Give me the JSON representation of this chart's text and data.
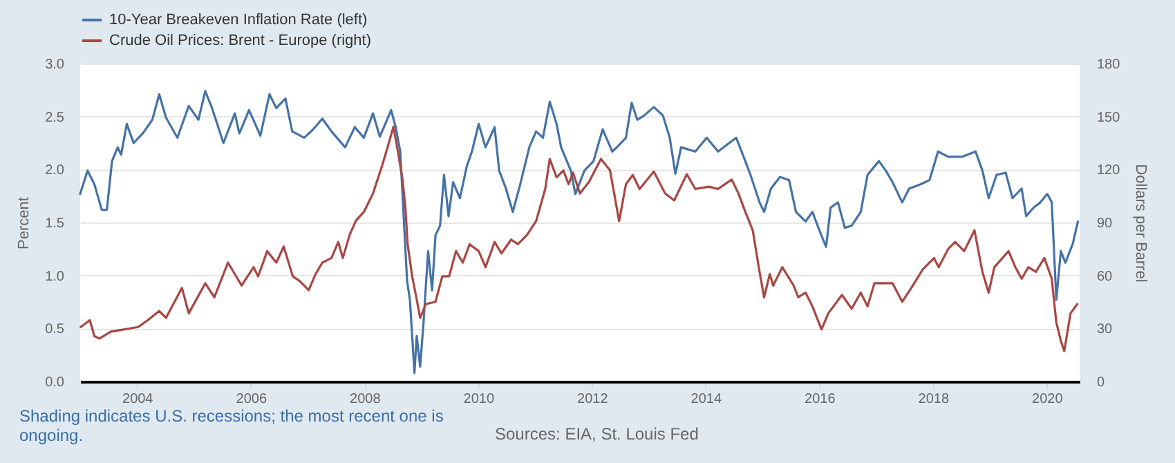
{
  "chart_data": {
    "type": "line",
    "ylabel": "Percent",
    "y2label": "Dollars per Barrel",
    "annotations": [
      "Shading indicates U.S. recessions; the most recent one is ongoing.",
      "Sources: EIA, St. Louis Fed"
    ],
    "xlim": [
      2003.0,
      2020.58
    ],
    "xticks": [
      2004,
      2006,
      2008,
      2010,
      2012,
      2014,
      2016,
      2018,
      2020
    ],
    "ylim": [
      0,
      3
    ],
    "yticks": [
      {
        "value": 0,
        "label": "0.0"
      },
      0.5,
      {
        "value": 1,
        "label": "1.0"
      },
      1.5,
      {
        "value": 2,
        "label": "2.0"
      },
      2.5,
      {
        "value": 3,
        "label": "3.0"
      }
    ],
    "y2lim": [
      0,
      180
    ],
    "y2ticks": [
      0,
      30,
      60,
      90,
      120,
      150,
      180
    ],
    "grid": "y",
    "legend": "top left",
    "series": [
      {
        "name": "10-Year Breakeven Inflation Rate (left)",
        "color": "#4572a7",
        "x": [
          2003.0,
          2003.13,
          2003.25,
          2003.38,
          2003.47,
          2003.56,
          2003.66,
          2003.72,
          2003.82,
          2003.94,
          2004.1,
          2004.27,
          2004.39,
          2004.51,
          2004.71,
          2004.91,
          2005.08,
          2005.2,
          2005.32,
          2005.52,
          2005.72,
          2005.8,
          2005.97,
          2006.17,
          2006.33,
          2006.45,
          2006.61,
          2006.73,
          2006.94,
          2007.1,
          2007.26,
          2007.42,
          2007.66,
          2007.83,
          2007.99,
          2008.15,
          2008.27,
          2008.47,
          2008.55,
          2008.63,
          2008.75,
          2008.8,
          2008.88,
          2008.92,
          2008.98,
          2009.04,
          2009.12,
          2009.19,
          2009.25,
          2009.33,
          2009.4,
          2009.48,
          2009.56,
          2009.68,
          2009.8,
          2009.89,
          2010.01,
          2010.13,
          2010.29,
          2010.37,
          2010.49,
          2010.61,
          2010.74,
          2010.9,
          2011.02,
          2011.14,
          2011.26,
          2011.38,
          2011.46,
          2011.63,
          2011.71,
          2011.87,
          2012.03,
          2012.19,
          2012.36,
          2012.44,
          2012.6,
          2012.7,
          2012.8,
          2012.92,
          2013.09,
          2013.25,
          2013.37,
          2013.47,
          2013.57,
          2013.82,
          2014.02,
          2014.22,
          2014.54,
          2014.67,
          2014.79,
          2014.95,
          2015.03,
          2015.15,
          2015.31,
          2015.47,
          2015.59,
          2015.76,
          2015.88,
          2016.0,
          2016.12,
          2016.2,
          2016.33,
          2016.45,
          2016.57,
          2016.73,
          2016.85,
          2017.05,
          2017.17,
          2017.29,
          2017.46,
          2017.58,
          2017.78,
          2017.94,
          2018.09,
          2018.27,
          2018.51,
          2018.75,
          2018.87,
          2018.98,
          2019.12,
          2019.28,
          2019.4,
          2019.56,
          2019.64,
          2019.77,
          2019.89,
          2020.01,
          2020.09,
          2020.17,
          2020.25,
          2020.33,
          2020.46,
          2020.55
        ],
        "values": [
          1.77,
          1.99,
          1.86,
          1.62,
          1.62,
          2.08,
          2.21,
          2.14,
          2.43,
          2.25,
          2.34,
          2.47,
          2.71,
          2.49,
          2.3,
          2.6,
          2.47,
          2.74,
          2.58,
          2.25,
          2.53,
          2.34,
          2.56,
          2.32,
          2.71,
          2.58,
          2.67,
          2.36,
          2.3,
          2.38,
          2.48,
          2.36,
          2.21,
          2.4,
          2.3,
          2.53,
          2.31,
          2.56,
          2.4,
          2.17,
          0.95,
          0.77,
          0.08,
          0.43,
          0.14,
          0.56,
          1.23,
          0.86,
          1.38,
          1.47,
          1.95,
          1.56,
          1.88,
          1.73,
          2.03,
          2.17,
          2.43,
          2.21,
          2.4,
          1.99,
          1.82,
          1.6,
          1.86,
          2.21,
          2.36,
          2.3,
          2.64,
          2.43,
          2.21,
          1.99,
          1.77,
          1.99,
          2.08,
          2.38,
          2.17,
          2.21,
          2.3,
          2.63,
          2.47,
          2.51,
          2.59,
          2.51,
          2.3,
          1.96,
          2.21,
          2.17,
          2.3,
          2.17,
          2.3,
          2.12,
          1.95,
          1.69,
          1.6,
          1.82,
          1.93,
          1.9,
          1.6,
          1.51,
          1.6,
          1.43,
          1.27,
          1.64,
          1.69,
          1.45,
          1.47,
          1.6,
          1.95,
          2.08,
          1.99,
          1.88,
          1.69,
          1.82,
          1.86,
          1.9,
          2.17,
          2.12,
          2.12,
          2.17,
          1.99,
          1.73,
          1.95,
          1.97,
          1.73,
          1.82,
          1.56,
          1.64,
          1.69,
          1.77,
          1.69,
          0.77,
          1.23,
          1.12,
          1.3,
          1.51
        ]
      },
      {
        "name": "Crude Oil Prices: Brent - Europe (right)",
        "color": "#aa4643",
        "axis": "y2",
        "x": [
          2003.01,
          2003.17,
          2003.25,
          2003.34,
          2003.54,
          2003.78,
          2004.02,
          2004.19,
          2004.39,
          2004.51,
          2004.79,
          2004.91,
          2005.2,
          2005.36,
          2005.6,
          2005.84,
          2006.05,
          2006.13,
          2006.29,
          2006.45,
          2006.58,
          2006.74,
          2006.86,
          2007.02,
          2007.14,
          2007.26,
          2007.42,
          2007.54,
          2007.62,
          2007.74,
          2007.85,
          2007.99,
          2008.15,
          2008.31,
          2008.43,
          2008.51,
          2008.59,
          2008.67,
          2008.72,
          2008.76,
          2008.84,
          2008.92,
          2008.98,
          2009.08,
          2009.25,
          2009.37,
          2009.49,
          2009.61,
          2009.73,
          2009.85,
          2010.01,
          2010.13,
          2010.29,
          2010.41,
          2010.58,
          2010.7,
          2010.86,
          2011.02,
          2011.18,
          2011.26,
          2011.38,
          2011.5,
          2011.59,
          2011.67,
          2011.79,
          2011.95,
          2012.16,
          2012.32,
          2012.48,
          2012.6,
          2012.72,
          2012.84,
          2013.09,
          2013.29,
          2013.45,
          2013.67,
          2013.82,
          2014.06,
          2014.22,
          2014.46,
          2014.58,
          2014.7,
          2014.83,
          2014.95,
          2015.03,
          2015.13,
          2015.19,
          2015.35,
          2015.55,
          2015.63,
          2015.76,
          2015.88,
          2016.04,
          2016.16,
          2016.4,
          2016.57,
          2016.73,
          2016.85,
          2016.97,
          2017.29,
          2017.46,
          2017.62,
          2017.82,
          2018.02,
          2018.1,
          2018.27,
          2018.39,
          2018.55,
          2018.73,
          2018.87,
          2018.98,
          2019.08,
          2019.33,
          2019.45,
          2019.56,
          2019.68,
          2019.81,
          2019.96,
          2020.09,
          2020.17,
          2020.25,
          2020.31,
          2020.42,
          2020.54
        ],
        "values": [
          30.8,
          34.7,
          25.6,
          24.3,
          28.2,
          29.5,
          30.8,
          34.7,
          39.9,
          36.0,
          53.0,
          38.6,
          55.6,
          47.7,
          67.3,
          54.3,
          64.7,
          59.5,
          73.8,
          67.3,
          76.4,
          59.5,
          56.9,
          51.7,
          60.8,
          67.3,
          69.9,
          79.0,
          69.9,
          83.0,
          91.0,
          96.0,
          106.4,
          122.1,
          135.1,
          144.3,
          129.9,
          114.3,
          98.6,
          77.7,
          59.5,
          46.4,
          36.0,
          43.8,
          45.1,
          59.5,
          59.5,
          73.8,
          67.3,
          77.7,
          73.8,
          64.7,
          79.0,
          72.5,
          80.3,
          77.7,
          83.0,
          90.8,
          109.0,
          126.0,
          115.6,
          119.5,
          111.7,
          118.2,
          106.4,
          113.0,
          126.0,
          119.5,
          90.8,
          111.7,
          116.9,
          109.0,
          118.9,
          106.4,
          102.5,
          117.4,
          109.0,
          110.3,
          109.0,
          114.3,
          106.4,
          96.0,
          85.6,
          62.1,
          47.7,
          60.8,
          54.3,
          64.7,
          54.3,
          47.7,
          50.3,
          42.5,
          29.5,
          38.6,
          49.0,
          41.2,
          50.3,
          42.5,
          55.6,
          55.6,
          45.1,
          53.0,
          63.4,
          69.9,
          64.7,
          75.1,
          79.0,
          73.8,
          85.6,
          62.1,
          50.3,
          64.7,
          73.8,
          64.7,
          58.2,
          64.7,
          62.1,
          69.9,
          58.2,
          33.4,
          23.0,
          17.2,
          38.6,
          43.8
        ]
      }
    ]
  }
}
